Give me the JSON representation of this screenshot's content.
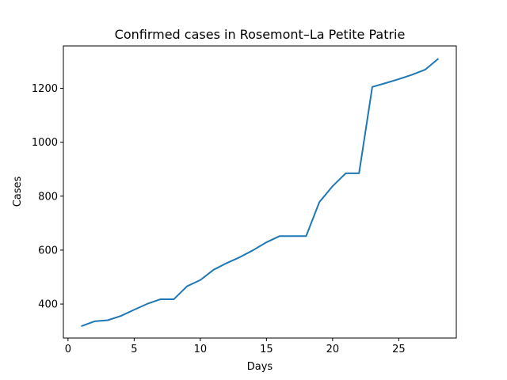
{
  "chart_data": {
    "type": "line",
    "title": "Confirmed cases in Rosemont–La Petite Patrie",
    "xlabel": "Days",
    "ylabel": "Cases",
    "xlim": [
      -0.35,
      29.35
    ],
    "ylim": [
      274,
      1357
    ],
    "xticks": [
      0,
      5,
      10,
      15,
      20,
      25
    ],
    "yticks": [
      400,
      600,
      800,
      1000,
      1200
    ],
    "grid": false,
    "series_color": "#1f77b4",
    "x": [
      1,
      2,
      3,
      4,
      5,
      6,
      7,
      8,
      9,
      10,
      11,
      12,
      13,
      14,
      15,
      16,
      17,
      18,
      19,
      20,
      21,
      22,
      23,
      24,
      25,
      26,
      27,
      28
    ],
    "y": [
      318,
      336,
      340,
      356,
      379,
      401,
      418,
      418,
      466,
      489,
      527,
      552,
      574,
      600,
      629,
      652,
      652,
      652,
      778,
      837,
      885,
      885,
      1205,
      1219,
      1234,
      1250,
      1269,
      1310
    ]
  }
}
